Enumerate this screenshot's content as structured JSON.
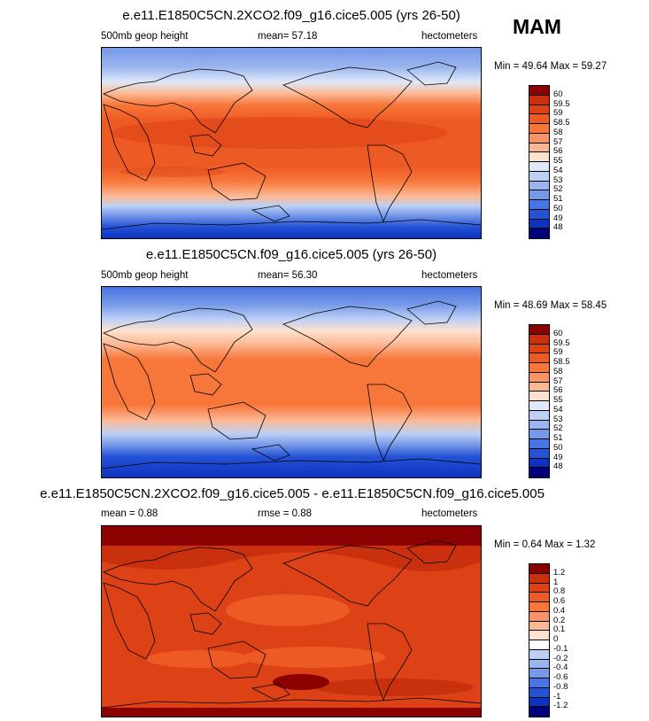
{
  "season": "MAM",
  "panels": [
    {
      "title": "e.e11.E1850C5CN.2XCO2.f09_g16.cice5.005 (yrs 26-50)",
      "left_label": "500mb geop height",
      "center_label": "mean=  57.18",
      "right_label": "hectometers",
      "minmax": "Min =  49.64 Max =  59.27",
      "colorbar": {
        "levels": [
          "60",
          "59.5",
          "59",
          "58.5",
          "58",
          "57",
          "56",
          "55",
          "54",
          "53",
          "52",
          "51",
          "50",
          "49",
          "48"
        ],
        "colors": [
          "#8b0000",
          "#c8300e",
          "#dc4216",
          "#ee5a24",
          "#f7773a",
          "#fa9468",
          "#fcb894",
          "#fde2cf",
          "#dfe8f8",
          "#bdd0f4",
          "#9ab5ee",
          "#7598e8",
          "#4a74e1",
          "#2453d6",
          "#0e32c0",
          "#00007a"
        ]
      }
    },
    {
      "title": "e.e11.E1850C5CN.f09_g16.cice5.005 (yrs 26-50)",
      "left_label": "500mb geop height",
      "center_label": "mean=  56.30",
      "right_label": "hectometers",
      "minmax": "Min =  48.69 Max =  58.45",
      "colorbar": {
        "levels": [
          "60",
          "59.5",
          "59",
          "58.5",
          "58",
          "57",
          "56",
          "55",
          "54",
          "53",
          "52",
          "51",
          "50",
          "49",
          "48"
        ],
        "colors": [
          "#8b0000",
          "#c8300e",
          "#dc4216",
          "#ee5a24",
          "#f7773a",
          "#fa9468",
          "#fcb894",
          "#fde2cf",
          "#dfe8f8",
          "#bdd0f4",
          "#9ab5ee",
          "#7598e8",
          "#4a74e1",
          "#2453d6",
          "#0e32c0",
          "#00007a"
        ]
      }
    },
    {
      "title": "e.e11.E1850C5CN.2XCO2.f09_g16.cice5.005 - e.e11.E1850C5CN.f09_g16.cice5.005",
      "left_label": "mean =   0.88",
      "center_label": "rmse =   0.88",
      "right_label": "hectometers",
      "minmax": "Min =  0.64 Max =   1.32",
      "colorbar": {
        "levels": [
          "1.2",
          "1",
          "0.8",
          "0.6",
          "0.4",
          "0.2",
          "0.1",
          "0",
          "-0.1",
          "-0.2",
          "-0.4",
          "-0.6",
          "-0.8",
          "-1",
          "-1.2"
        ],
        "colors": [
          "#8b0000",
          "#c8300e",
          "#dc4216",
          "#ee5a24",
          "#f7773a",
          "#fa9468",
          "#fcb894",
          "#fde2cf",
          "#ffffff",
          "#bdd0f4",
          "#9ab5ee",
          "#7598e8",
          "#4a74e1",
          "#2453d6",
          "#0e32c0",
          "#00007a"
        ]
      }
    }
  ]
}
